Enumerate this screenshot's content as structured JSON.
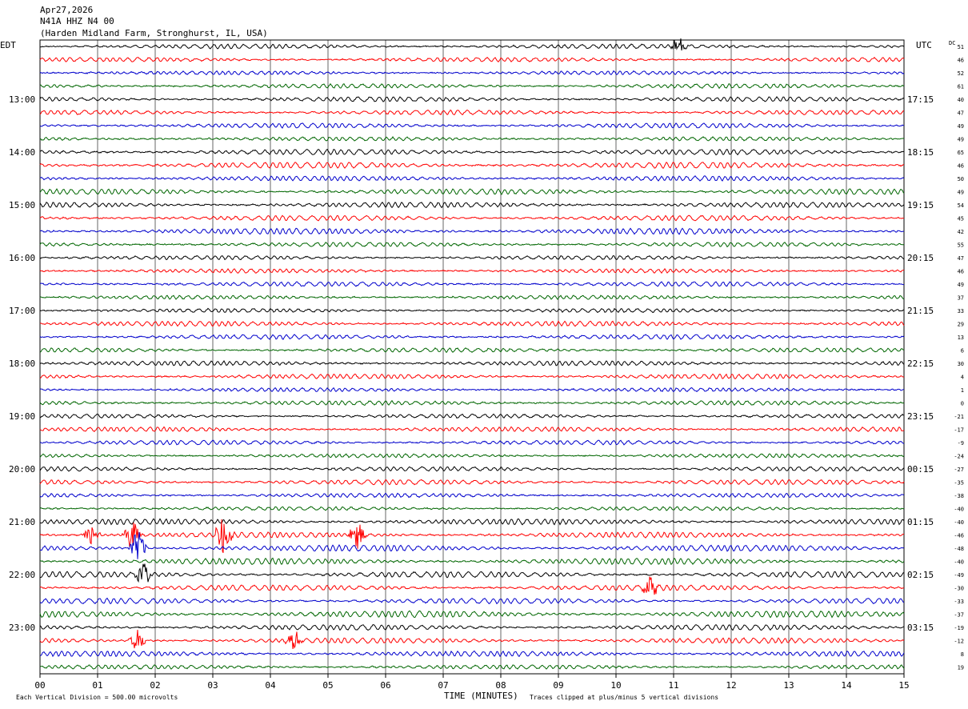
{
  "header": {
    "date": "Apr27,2026",
    "station": "N41A HHZ N4 00",
    "location": "(Harden Midland Farm, Stronghurst, IL, USA)"
  },
  "left_timezone": "EDT",
  "right_timezone": "UTC",
  "dc_label": "DC",
  "colors": {
    "black": "#000000",
    "red": "#ff0000",
    "blue": "#0000cc",
    "green": "#006600"
  },
  "chart_data": {
    "type": "helicorder",
    "xlabel": "TIME (MINUTES)",
    "xlim": [
      0,
      15
    ],
    "x_ticks": [
      "00",
      "01",
      "02",
      "03",
      "04",
      "05",
      "06",
      "07",
      "08",
      "09",
      "10",
      "11",
      "12",
      "13",
      "14",
      "15"
    ],
    "minutes_per_line": 15,
    "trace_colors": [
      "black",
      "red",
      "blue",
      "green"
    ],
    "left_hour_labels": [
      {
        "line": 4,
        "label": "13:00"
      },
      {
        "line": 8,
        "label": "14:00"
      },
      {
        "line": 12,
        "label": "15:00"
      },
      {
        "line": 16,
        "label": "16:00"
      },
      {
        "line": 20,
        "label": "17:00"
      },
      {
        "line": 24,
        "label": "18:00"
      },
      {
        "line": 28,
        "label": "19:00"
      },
      {
        "line": 32,
        "label": "20:00"
      },
      {
        "line": 36,
        "label": "21:00"
      },
      {
        "line": 40,
        "label": "22:00"
      },
      {
        "line": 44,
        "label": "23:00"
      }
    ],
    "right_hour_labels": [
      {
        "line": 4,
        "label": "17:15"
      },
      {
        "line": 8,
        "label": "18:15"
      },
      {
        "line": 12,
        "label": "19:15"
      },
      {
        "line": 16,
        "label": "20:15"
      },
      {
        "line": 20,
        "label": "21:15"
      },
      {
        "line": 24,
        "label": "22:15"
      },
      {
        "line": 28,
        "label": "23:15"
      },
      {
        "line": 32,
        "label": "00:15"
      },
      {
        "line": 36,
        "label": "01:15"
      },
      {
        "line": 40,
        "label": "02:15"
      },
      {
        "line": 44,
        "label": "03:15"
      }
    ],
    "dc_offsets": [
      "51",
      "46",
      "52",
      "61",
      "40",
      "47",
      "49",
      "49",
      "65",
      "46",
      "50",
      "49",
      "54",
      "45",
      "42",
      "55",
      "47",
      "46",
      "49",
      "37",
      "33",
      "29",
      "13",
      "6",
      "30",
      "4",
      "1",
      "0",
      "-21",
      "-17",
      "-9",
      "-24",
      "-27",
      "-35",
      "-38",
      "-40",
      "-40",
      "-46",
      "-48",
      "-40",
      "-49",
      "-30",
      "-33",
      "-37",
      "-19",
      "-12",
      "8",
      "19"
    ],
    "events": [
      {
        "line": 37,
        "minute": 0.9,
        "amp": 1.5
      },
      {
        "line": 37,
        "minute": 1.6,
        "amp": 2.2
      },
      {
        "line": 38,
        "minute": 1.7,
        "amp": 2.4
      },
      {
        "line": 37,
        "minute": 3.2,
        "amp": 3.2
      },
      {
        "line": 37,
        "minute": 5.5,
        "amp": 1.8
      },
      {
        "line": 40,
        "minute": 1.8,
        "amp": 1.4
      },
      {
        "line": 45,
        "minute": 1.7,
        "amp": 1.4
      },
      {
        "line": 45,
        "minute": 4.4,
        "amp": 1.3
      },
      {
        "line": 41,
        "minute": 10.6,
        "amp": 1.2
      },
      {
        "line": 0,
        "minute": 11.1,
        "amp": 1.1
      }
    ]
  },
  "footer": {
    "scale_note": "Each Vertical Division =  500.00 microvolts",
    "clip_note": "Traces clipped at plus/minus 5 vertical divisions"
  }
}
